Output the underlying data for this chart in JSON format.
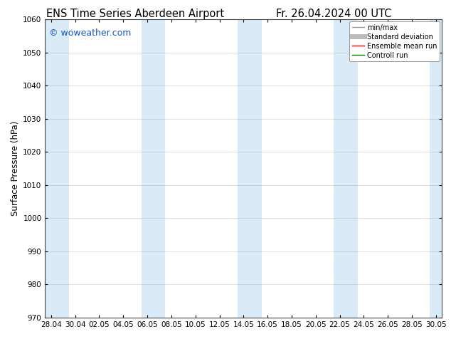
{
  "title_left": "ENS Time Series Aberdeen Airport",
  "title_right": "Fr. 26.04.2024 00 UTC",
  "ylabel": "Surface Pressure (hPa)",
  "watermark": "© woweather.com",
  "ylim": [
    970,
    1060
  ],
  "yticks": [
    970,
    980,
    990,
    1000,
    1010,
    1020,
    1030,
    1040,
    1050,
    1060
  ],
  "x_labels": [
    "28.04",
    "30.04",
    "02.05",
    "04.05",
    "06.05",
    "08.05",
    "10.05",
    "12.05",
    "14.05",
    "16.05",
    "18.05",
    "20.05",
    "22.05",
    "24.05",
    "26.05",
    "28.05",
    "30.05"
  ],
  "x_step": 2,
  "background_color": "#ffffff",
  "band_color": "#daeaf7",
  "band_xranges": [
    [
      0,
      2
    ],
    [
      8,
      10
    ],
    [
      16,
      18
    ],
    [
      24,
      26
    ],
    [
      32,
      34
    ]
  ],
  "legend_items": [
    {
      "label": "min/max",
      "color": "#999999",
      "lw": 1.0,
      "style": "solid"
    },
    {
      "label": "Standard deviation",
      "color": "#bbbbbb",
      "lw": 5,
      "style": "solid"
    },
    {
      "label": "Ensemble mean run",
      "color": "#ff0000",
      "lw": 1.0,
      "style": "solid"
    },
    {
      "label": "Controll run",
      "color": "#008000",
      "lw": 1.0,
      "style": "solid"
    }
  ],
  "title_fontsize": 10.5,
  "tick_fontsize": 7.5,
  "watermark_color": "#1155cc",
  "watermark_fontsize": 9,
  "grid_color": "#888888",
  "grid_alpha": 0.35,
  "grid_lw": 0.5,
  "spine_color": "#444444",
  "spine_lw": 0.8
}
